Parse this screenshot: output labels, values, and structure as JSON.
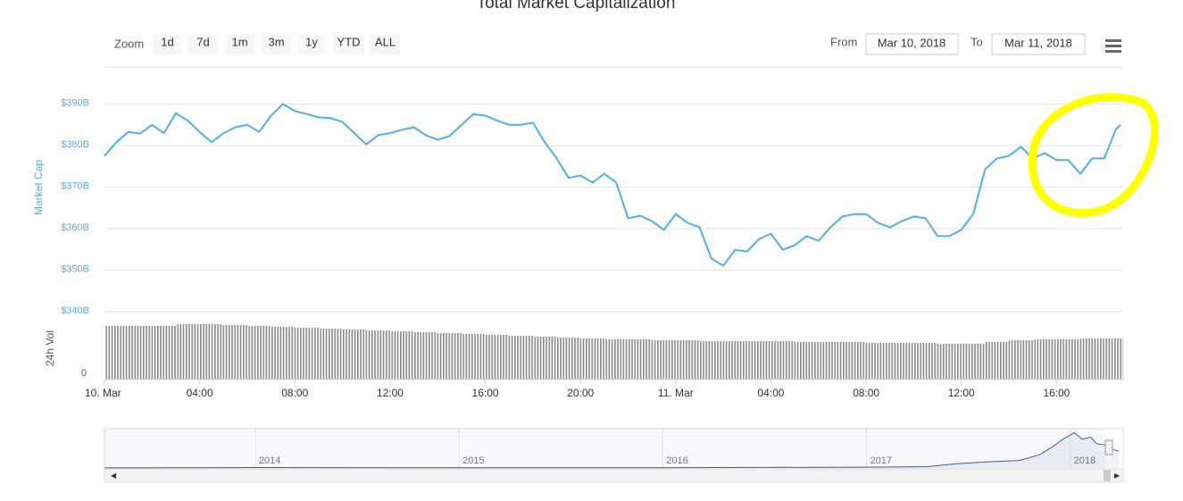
{
  "chart_data": {
    "type": "line",
    "title": "Total Market Capitalization",
    "y_label": "Market Cap",
    "volume_label": "24h Vol",
    "zoom_label": "Zoom",
    "zoom_buttons": [
      "1d",
      "7d",
      "1m",
      "3m",
      "1y",
      "YTD",
      "ALL"
    ],
    "from_label": "From",
    "from_date": "Mar 10, 2018",
    "to_label": "To",
    "to_date": "Mar 11, 2018",
    "color": "#4fb1e3",
    "x": [
      0,
      0.5,
      1,
      1.5,
      2,
      2.5,
      3,
      3.5,
      4,
      4.5,
      5,
      5.5,
      6,
      6.5,
      7,
      7.5,
      8,
      8.5,
      9,
      9.5,
      10,
      10.5,
      11,
      11.5,
      12,
      12.5,
      13,
      13.5,
      14,
      14.5,
      15,
      15.5,
      16,
      16.5,
      17,
      17.5,
      18,
      18.5,
      19,
      19.5,
      20,
      20.5,
      21,
      21.5,
      22,
      22.5,
      23,
      23.5,
      24,
      24.5,
      25,
      25.5,
      26,
      26.5,
      27,
      27.5,
      28,
      28.5,
      29,
      29.5,
      30,
      30.5,
      31,
      31.5,
      32,
      32.5,
      33,
      33.5,
      34,
      34.5,
      35,
      35.5,
      36,
      36.5,
      37,
      37.5,
      38,
      38.5,
      39,
      39.5,
      40,
      40.5,
      41,
      41.5,
      42,
      42.5,
      42.7
    ],
    "values": [
      377.5,
      380.8,
      383.3,
      382.9,
      385,
      383,
      387.8,
      386,
      383.3,
      380.8,
      383,
      384.4,
      385,
      383.3,
      387.2,
      390,
      388.3,
      387.6,
      386.8,
      386.6,
      385.7,
      383,
      380.3,
      382.5,
      383,
      383.8,
      384.4,
      382.5,
      381.4,
      382.3,
      385,
      387.6,
      387.2,
      386,
      385,
      385,
      385.5,
      380.8,
      376.9,
      372.2,
      372.8,
      371.1,
      373.2,
      371.1,
      362.5,
      363.1,
      361.8,
      359.7,
      363.5,
      361.4,
      360.3,
      352.8,
      351.1,
      354.9,
      354.5,
      357.5,
      358.8,
      354.9,
      356,
      358.2,
      357.1,
      360.3,
      362.9,
      363.5,
      363.5,
      361.4,
      360.3,
      361.8,
      362.9,
      362.5,
      358.2,
      358.2,
      359.7,
      363.5,
      374.3,
      376.9,
      377.5,
      379.7,
      376.9,
      378.2,
      376.5,
      376.5,
      373.2,
      376.9,
      376.9,
      384,
      385
    ],
    "xlim": [
      0,
      42.8
    ],
    "xticks": [
      {
        "value": 0,
        "label": "10. Mar"
      },
      {
        "value": 4,
        "label": "04:00"
      },
      {
        "value": 8,
        "label": "08:00"
      },
      {
        "value": 12,
        "label": "12:00"
      },
      {
        "value": 16,
        "label": "16:00"
      },
      {
        "value": 20,
        "label": "20:00"
      },
      {
        "value": 24,
        "label": "11. Mar"
      },
      {
        "value": 28,
        "label": "04:00"
      },
      {
        "value": 32,
        "label": "08:00"
      },
      {
        "value": 36,
        "label": "12:00"
      },
      {
        "value": 40,
        "label": "16:00"
      }
    ],
    "ylim": [
      340,
      400
    ],
    "yticks": [
      {
        "value": 340,
        "label": "$340B"
      },
      {
        "value": 350,
        "label": "$350B"
      },
      {
        "value": 360,
        "label": "$360B"
      },
      {
        "value": 370,
        "label": "$370B"
      },
      {
        "value": 380,
        "label": "$380B"
      },
      {
        "value": 390,
        "label": "$390B"
      }
    ],
    "grid": true,
    "volume": {
      "color": "#888888",
      "x": [
        0,
        1,
        2,
        3,
        4,
        5,
        6,
        7,
        8,
        9,
        10,
        11,
        12,
        13,
        14,
        15,
        16,
        17,
        18,
        19,
        20,
        21,
        22,
        23,
        24,
        25,
        26,
        27,
        28,
        29,
        30,
        31,
        32,
        33,
        34,
        35,
        36,
        37,
        38,
        39,
        40,
        41,
        42
      ],
      "values": [
        30,
        30,
        30,
        31,
        31,
        30.5,
        30,
        29.5,
        29,
        28.5,
        28,
        27.5,
        27,
        26.5,
        26,
        25.5,
        25,
        24.5,
        24,
        23.5,
        23,
        22.5,
        22.5,
        22,
        22,
        21.5,
        21.5,
        21.5,
        21.5,
        21,
        21,
        21,
        20.5,
        20.5,
        20.5,
        20,
        20,
        21,
        22,
        22.5,
        22.5,
        23,
        23
      ],
      "ylim": [
        0,
        35
      ],
      "yticks": [
        0
      ]
    },
    "navigator": {
      "color": "#3b5ba5",
      "x": [
        2013.26,
        2014,
        2015,
        2016,
        2016.5,
        2017,
        2017.3,
        2017.45,
        2017.6,
        2017.75,
        2017.85,
        2017.92,
        2017.96,
        2018.02,
        2018.06,
        2018.1,
        2018.13,
        2018.17,
        2018.2,
        2018.24
      ],
      "values": [
        2,
        10,
        5,
        7,
        12,
        18,
        30,
        100,
        140,
        170,
        300,
        500,
        640,
        800,
        650,
        700,
        550,
        520,
        430,
        380
      ],
      "xlim": [
        2013.26,
        2018.26
      ],
      "ylim": [
        0,
        850
      ],
      "xticks": [
        2014,
        2015,
        2016,
        2017,
        2018
      ]
    }
  }
}
